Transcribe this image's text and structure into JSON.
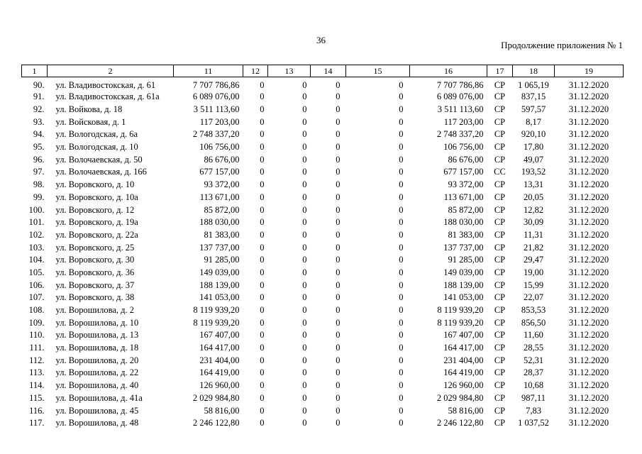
{
  "page": {
    "number": "36",
    "continuation": "Продолжение приложения № 1"
  },
  "table": {
    "header": [
      "1",
      "2",
      "11",
      "12",
      "13",
      "14",
      "15",
      "16",
      "17",
      "18",
      "19"
    ],
    "rows": [
      [
        "90.",
        "ул. Владивостокская, д. 61",
        "7 707 786,86",
        "0",
        "0",
        "0",
        "0",
        "7 707 786,86",
        "СР",
        "1 065,19",
        "31.12.2020"
      ],
      [
        "91.",
        "ул. Владивостокская, д. 61а",
        "6 089 076,00",
        "0",
        "0",
        "0",
        "0",
        "6 089 076,00",
        "СР",
        "837,15",
        "31.12.2020"
      ],
      [
        "92.",
        "ул. Войкова, д. 18",
        "3 511 113,60",
        "0",
        "0",
        "0",
        "0",
        "3 511 113,60",
        "СР",
        "597,57",
        "31.12.2020"
      ],
      [
        "93.",
        "ул. Войсковая, д. 1",
        "117 203,00",
        "0",
        "0",
        "0",
        "0",
        "117 203,00",
        "СР",
        "8,17",
        "31.12.2020"
      ],
      [
        "94.",
        "ул. Вологодская, д. 6а",
        "2 748 337,20",
        "0",
        "0",
        "0",
        "0",
        "2 748 337,20",
        "СР",
        "920,10",
        "31.12.2020"
      ],
      [
        "95.",
        "ул. Вологодская, д. 10",
        "106 756,00",
        "0",
        "0",
        "0",
        "0",
        "106 756,00",
        "СР",
        "17,80",
        "31.12.2020"
      ],
      [
        "96.",
        "ул. Волочаевская, д. 50",
        "86 676,00",
        "0",
        "0",
        "0",
        "0",
        "86 676,00",
        "СР",
        "49,07",
        "31.12.2020"
      ],
      [
        "97.",
        "ул. Волочаевская, д. 166",
        "677 157,00",
        "0",
        "0",
        "0",
        "0",
        "677 157,00",
        "СС",
        "193,52",
        "31.12.2020"
      ],
      [
        "98.",
        "ул. Воровского, д. 10",
        "93 372,00",
        "0",
        "0",
        "0",
        "0",
        "93 372,00",
        "СР",
        "13,31",
        "31.12.2020"
      ],
      [
        "99.",
        "ул. Воровского, д. 10а",
        "113 671,00",
        "0",
        "0",
        "0",
        "0",
        "113 671,00",
        "СР",
        "20,05",
        "31.12.2020"
      ],
      [
        "100.",
        "ул. Воровского, д. 12",
        "85 872,00",
        "0",
        "0",
        "0",
        "0",
        "85 872,00",
        "СР",
        "12,82",
        "31.12.2020"
      ],
      [
        "101.",
        "ул. Воровского, д. 19а",
        "188 030,00",
        "0",
        "0",
        "0",
        "0",
        "188 030,00",
        "СР",
        "30,09",
        "31.12.2020"
      ],
      [
        "102.",
        "ул. Воровского, д. 22а",
        "81 383,00",
        "0",
        "0",
        "0",
        "0",
        "81 383,00",
        "СР",
        "11,31",
        "31.12.2020"
      ],
      [
        "103.",
        "ул. Воровского, д. 25",
        "137 737,00",
        "0",
        "0",
        "0",
        "0",
        "137 737,00",
        "СР",
        "21,82",
        "31.12.2020"
      ],
      [
        "104.",
        "ул. Воровского, д. 30",
        "91 285,00",
        "0",
        "0",
        "0",
        "0",
        "91 285,00",
        "СР",
        "29,47",
        "31.12.2020"
      ],
      [
        "105.",
        "ул. Воровского, д. 36",
        "149 039,00",
        "0",
        "0",
        "0",
        "0",
        "149 039,00",
        "СР",
        "19,00",
        "31.12.2020"
      ],
      [
        "106.",
        "ул. Воровского, д. 37",
        "188 139,00",
        "0",
        "0",
        "0",
        "0",
        "188 139,00",
        "СР",
        "15,99",
        "31.12.2020"
      ],
      [
        "107.",
        "ул. Воровского, д. 38",
        "141 053,00",
        "0",
        "0",
        "0",
        "0",
        "141 053,00",
        "СР",
        "22,07",
        "31.12.2020"
      ],
      [
        "108.",
        "ул. Ворошилова, д. 2",
        "8 119 939,20",
        "0",
        "0",
        "0",
        "0",
        "8 119 939,20",
        "СР",
        "853,53",
        "31.12.2020"
      ],
      [
        "109.",
        "ул. Ворошилова, д. 10",
        "8 119 939,20",
        "0",
        "0",
        "0",
        "0",
        "8 119 939,20",
        "СР",
        "856,50",
        "31.12.2020"
      ],
      [
        "110.",
        "ул. Ворошилова, д. 13",
        "167 407,00",
        "0",
        "0",
        "0",
        "0",
        "167 407,00",
        "СР",
        "11,60",
        "31.12.2020"
      ],
      [
        "111.",
        "ул. Ворошилова, д. 18",
        "164 417,00",
        "0",
        "0",
        "0",
        "0",
        "164 417,00",
        "СР",
        "28,55",
        "31.12.2020"
      ],
      [
        "112.",
        "ул. Ворошилова, д. 20",
        "231 404,00",
        "0",
        "0",
        "0",
        "0",
        "231 404,00",
        "СР",
        "52,31",
        "31.12.2020"
      ],
      [
        "113.",
        "ул. Ворошилова, д. 22",
        "164 419,00",
        "0",
        "0",
        "0",
        "0",
        "164 419,00",
        "СР",
        "28,37",
        "31.12.2020"
      ],
      [
        "114.",
        "ул. Ворошилова, д. 40",
        "126 960,00",
        "0",
        "0",
        "0",
        "0",
        "126 960,00",
        "СР",
        "10,68",
        "31.12.2020"
      ],
      [
        "115.",
        "ул. Ворошилова, д. 41а",
        "2 029 984,80",
        "0",
        "0",
        "0",
        "0",
        "2 029 984,80",
        "СР",
        "987,11",
        "31.12.2020"
      ],
      [
        "116.",
        "ул. Ворошилова, д. 45",
        "58 816,00",
        "0",
        "0",
        "0",
        "0",
        "58 816,00",
        "СР",
        "7,83",
        "31.12.2020"
      ],
      [
        "117.",
        "ул. Ворошилова, д. 48",
        "2 246 122,80",
        "0",
        "0",
        "0",
        "0",
        "2 246 122,80",
        "СР",
        "1 037,52",
        "31.12.2020"
      ]
    ]
  }
}
